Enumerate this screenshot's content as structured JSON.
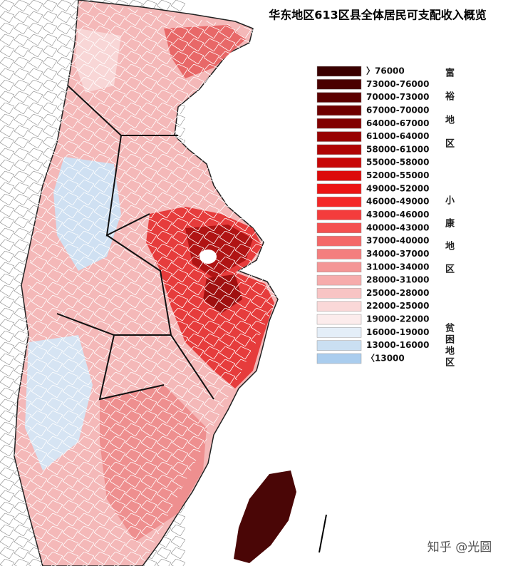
{
  "title": "华东地区613区县全体居民可支配收入概览",
  "legend": [
    {
      "label": "〉76000",
      "color": "#3a0000"
    },
    {
      "label": "73000-76000",
      "color": "#4a0000"
    },
    {
      "label": "70000-73000",
      "color": "#5c0000"
    },
    {
      "label": "67000-70000",
      "color": "#6e0000"
    },
    {
      "label": "64000-67000",
      "color": "#820000"
    },
    {
      "label": "61000-64000",
      "color": "#980202"
    },
    {
      "label": "58000-61000",
      "color": "#b00404"
    },
    {
      "label": "55000-58000",
      "color": "#c80606"
    },
    {
      "label": "52000-55000",
      "color": "#dc0a0a"
    },
    {
      "label": "49000-52000",
      "color": "#ec1414"
    },
    {
      "label": "46000-49000",
      "color": "#f42828"
    },
    {
      "label": "43000-46000",
      "color": "#f43c3c"
    },
    {
      "label": "40000-43000",
      "color": "#f45050"
    },
    {
      "label": "37000-40000",
      "color": "#f46868"
    },
    {
      "label": "34000-37000",
      "color": "#f47e7e"
    },
    {
      "label": "31000-34000",
      "color": "#f49696"
    },
    {
      "label": "28000-31000",
      "color": "#f6acac"
    },
    {
      "label": "25000-28000",
      "color": "#f8c4c4"
    },
    {
      "label": "22000-25000",
      "color": "#fad8d8"
    },
    {
      "label": "19000-22000",
      "color": "#fcecec"
    },
    {
      "label": "16000-19000",
      "color": "#e4eef8"
    },
    {
      "label": "13000-16000",
      "color": "#cadff2"
    },
    {
      "label": "〈13000",
      "color": "#aacdee"
    }
  ],
  "side_labels": [
    "富裕地区",
    "小康地区",
    "贫困地区"
  ],
  "watermark": "知乎 @光圆"
}
